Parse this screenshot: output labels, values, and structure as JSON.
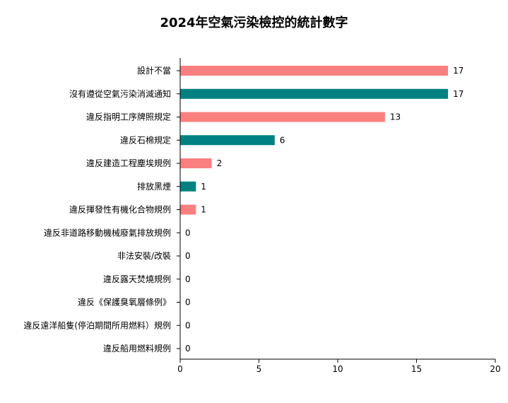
{
  "chart_data": {
    "type": "bar",
    "orientation": "horizontal",
    "title": "2024年空氣污染檢控的統計數字",
    "xlabel": "",
    "ylabel": "",
    "xlim": [
      0,
      20
    ],
    "xticks": [
      0,
      5,
      10,
      15,
      20
    ],
    "grid": false,
    "categories": [
      "設計不當",
      "沒有遵從空氣污染消減通知",
      "違反指明工序牌照規定",
      "違反石棉規定",
      "違反建造工程塵埃規例",
      "排放黑煙",
      "違反揮發性有機化合物規例",
      "違反非道路移動機械廢氣排放規例",
      "非法安裝/改裝",
      "違反露天焚燒規例",
      "違反《保護臭氧層條例》",
      "違反遠洋船隻(停泊期間所用燃料）規例",
      "違反船用燃料規例"
    ],
    "values": [
      17,
      17,
      13,
      6,
      2,
      1,
      1,
      0,
      0,
      0,
      0,
      0,
      0
    ],
    "colors": [
      "#fa8080",
      "#008080",
      "#fa8080",
      "#008080",
      "#fa8080",
      "#008080",
      "#fa8080",
      "#008080",
      "#fa8080",
      "#008080",
      "#fa8080",
      "#008080",
      "#fa8080"
    ],
    "axis_color": "#000000",
    "text_color": "#000000"
  }
}
